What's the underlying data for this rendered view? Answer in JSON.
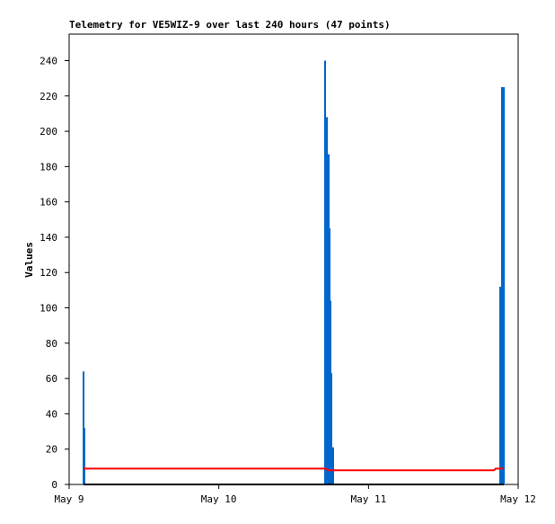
{
  "chart_data": {
    "type": "line",
    "title": "Telemetry for VE5WIZ-9 over last 240 hours (47 points)",
    "y_label": "Values",
    "xlim": [
      0,
      3
    ],
    "xticks": [
      {
        "value": 0,
        "label": "May 9"
      },
      {
        "value": 1,
        "label": "May 10"
      },
      {
        "value": 2,
        "label": "May 11"
      },
      {
        "value": 3,
        "label": "May 12"
      }
    ],
    "ylim": [
      0,
      255
    ],
    "yticks": [
      0,
      20,
      40,
      60,
      80,
      100,
      120,
      140,
      160,
      180,
      200,
      220,
      240
    ],
    "grid": false,
    "series": [
      {
        "type": "bar",
        "color": "#0066cc",
        "x": [
          0.096,
          0.102,
          1.71,
          1.716,
          1.722,
          1.734,
          1.74,
          1.746,
          1.752,
          1.764,
          2.88,
          2.892,
          2.904
        ],
        "values": [
          64,
          32,
          240,
          192,
          208,
          187,
          145,
          104,
          63,
          21,
          112,
          225,
          225
        ]
      },
      {
        "type": "line",
        "color": "#ff0000",
        "x": [
          0.096,
          1.71,
          1.734,
          2.838,
          2.85,
          2.904
        ],
        "values": [
          9,
          9,
          8,
          8,
          9,
          9
        ]
      },
      {
        "type": "line",
        "color": "#000000",
        "x": [
          0.096,
          2.904
        ],
        "values": [
          0,
          0
        ]
      }
    ]
  }
}
